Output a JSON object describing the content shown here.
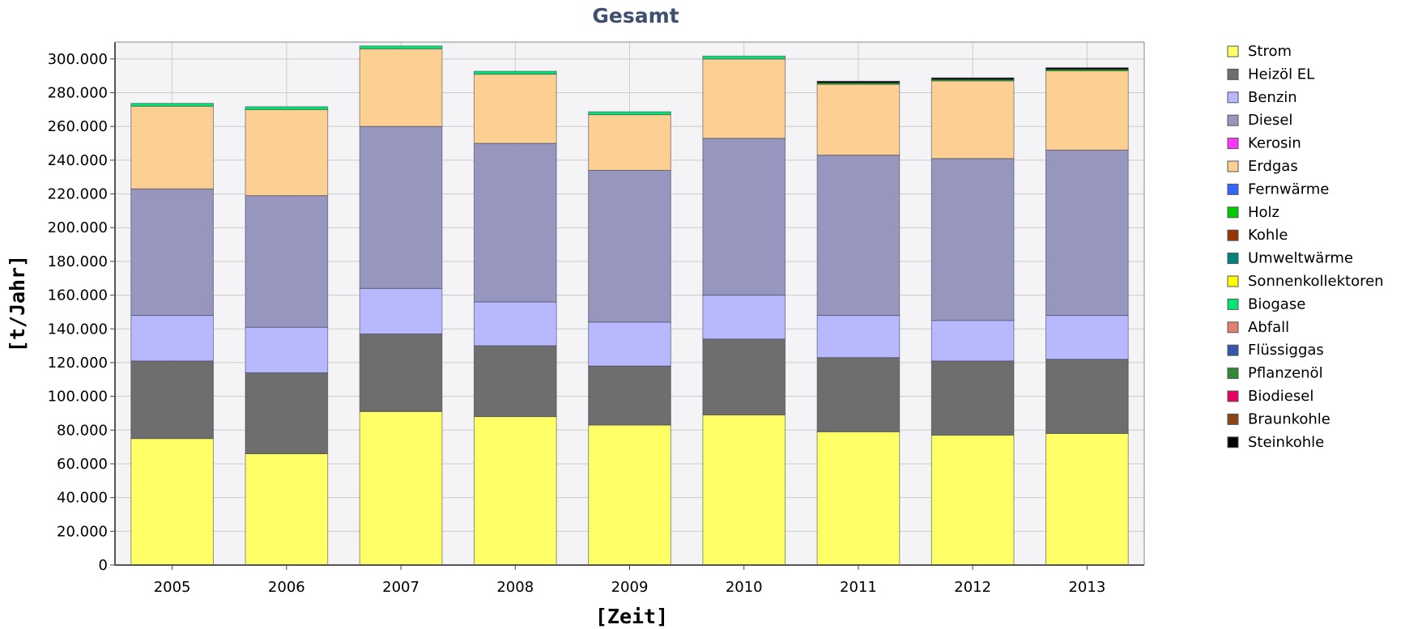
{
  "chart_data": {
    "type": "bar",
    "stacked": true,
    "title": "Gesamt",
    "xlabel": "[Zeit]",
    "ylabel": "[t/Jahr]",
    "ylim": [
      0,
      310000
    ],
    "yticks": [
      0,
      20000,
      40000,
      60000,
      80000,
      100000,
      120000,
      140000,
      160000,
      180000,
      200000,
      220000,
      240000,
      260000,
      280000,
      300000
    ],
    "ytick_labels": [
      "0",
      "20.000",
      "40.000",
      "60.000",
      "80.000",
      "100.000",
      "120.000",
      "140.000",
      "160.000",
      "180.000",
      "200.000",
      "220.000",
      "240.000",
      "260.000",
      "280.000",
      "300.000"
    ],
    "grid": true,
    "legend_position": "right",
    "categories": [
      "2005",
      "2006",
      "2007",
      "2008",
      "2009",
      "2010",
      "2011",
      "2012",
      "2013"
    ],
    "series": [
      {
        "name": "Strom",
        "color": "#ffff66",
        "values": [
          75000,
          66000,
          91000,
          88000,
          83000,
          89000,
          79000,
          77000,
          78000
        ]
      },
      {
        "name": "Heizöl EL",
        "color": "#6e6e6e",
        "values": [
          46000,
          48000,
          46000,
          42000,
          35000,
          45000,
          44000,
          44000,
          44000
        ]
      },
      {
        "name": "Benzin",
        "color": "#b8b8ff",
        "values": [
          27000,
          27000,
          27000,
          26000,
          26000,
          26000,
          25000,
          24000,
          26000
        ]
      },
      {
        "name": "Diesel",
        "color": "#9696be",
        "values": [
          75000,
          78000,
          96000,
          94000,
          90000,
          93000,
          95000,
          96000,
          98000
        ]
      },
      {
        "name": "Kerosin",
        "color": "#ff33ff",
        "values": [
          0,
          0,
          0,
          0,
          0,
          0,
          0,
          0,
          0
        ]
      },
      {
        "name": "Erdgas",
        "color": "#fcd092",
        "values": [
          49000,
          51000,
          46000,
          41000,
          33000,
          47000,
          42000,
          46000,
          47000
        ]
      },
      {
        "name": "Fernwärme",
        "color": "#3366ff",
        "values": [
          0,
          0,
          0,
          0,
          0,
          0,
          0,
          0,
          0
        ]
      },
      {
        "name": "Holz",
        "color": "#00cc00",
        "values": [
          0,
          0,
          0,
          0,
          0,
          0,
          800,
          800,
          800
        ]
      },
      {
        "name": "Kohle",
        "color": "#993300",
        "values": [
          0,
          0,
          0,
          0,
          0,
          0,
          0,
          0,
          0
        ]
      },
      {
        "name": "Umweltwärme",
        "color": "#008080",
        "values": [
          0,
          0,
          0,
          0,
          0,
          0,
          0,
          0,
          0
        ]
      },
      {
        "name": "Sonnenkollektoren",
        "color": "#ffff00",
        "values": [
          0,
          0,
          0,
          0,
          0,
          0,
          0,
          0,
          0
        ]
      },
      {
        "name": "Biogase",
        "color": "#00e673",
        "values": [
          1700,
          1700,
          1700,
          1700,
          1700,
          1700,
          0,
          0,
          0
        ]
      },
      {
        "name": "Abfall",
        "color": "#e08070",
        "values": [
          0,
          0,
          0,
          0,
          0,
          0,
          0,
          0,
          0
        ]
      },
      {
        "name": "Flüssiggas",
        "color": "#3355aa",
        "values": [
          0,
          0,
          0,
          0,
          0,
          0,
          0,
          0,
          0
        ]
      },
      {
        "name": "Pflanzenöl",
        "color": "#338833",
        "values": [
          0,
          0,
          0,
          0,
          0,
          0,
          0,
          0,
          0
        ]
      },
      {
        "name": "Biodiesel",
        "color": "#e60060",
        "values": [
          0,
          0,
          0,
          0,
          0,
          0,
          0,
          0,
          0
        ]
      },
      {
        "name": "Braunkohle",
        "color": "#8b4513",
        "values": [
          0,
          0,
          0,
          0,
          0,
          0,
          0,
          0,
          0
        ]
      },
      {
        "name": "Steinkohle",
        "color": "#000000",
        "values": [
          0,
          0,
          0,
          0,
          0,
          0,
          1000,
          1000,
          1000
        ]
      }
    ]
  }
}
